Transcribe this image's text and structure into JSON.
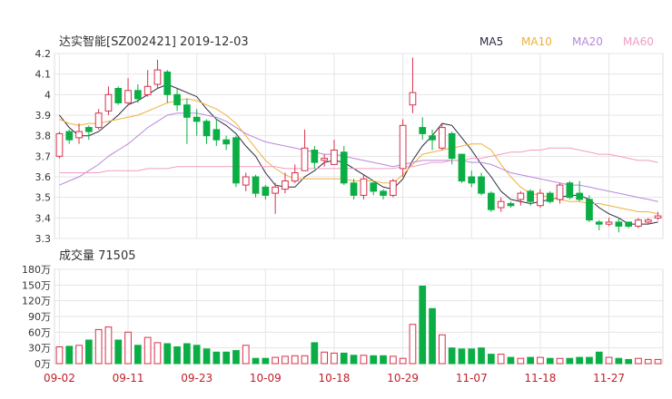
{
  "header": {
    "title": "达实智能[SZ002421] 2019-12-03"
  },
  "legend": [
    {
      "label": "MA5",
      "color": "#2b2b40"
    },
    {
      "label": "MA10",
      "color": "#f0b03c"
    },
    {
      "label": "MA20",
      "color": "#b887dd"
    },
    {
      "label": "MA60",
      "color": "#f29cc3"
    }
  ],
  "volume_header": {
    "label": "成交量 71505"
  },
  "colors": {
    "up": "#d8304a",
    "down": "#0aae45",
    "grid": "#e5e5e5"
  },
  "chart_data": [
    {
      "type": "candlestick",
      "title": "达实智能[SZ002421] 2019-12-03",
      "yticks": [
        "4.2",
        "4.1",
        "4",
        "3.9",
        "3.8",
        "3.7",
        "3.6",
        "3.5",
        "3.4",
        "3.3"
      ],
      "ylim": [
        3.3,
        4.2
      ],
      "xticks": [
        {
          "label": "09-02",
          "index": 0
        },
        {
          "label": "09-11",
          "index": 7
        },
        {
          "label": "09-23",
          "index": 14
        },
        {
          "label": "10-09",
          "index": 21
        },
        {
          "label": "10-18",
          "index": 28
        },
        {
          "label": "10-29",
          "index": 35
        },
        {
          "label": "11-07",
          "index": 42
        },
        {
          "label": "11-18",
          "index": 49
        },
        {
          "label": "11-27",
          "index": 56
        }
      ],
      "candles": [
        [
          3.7,
          3.81,
          3.82,
          3.69
        ],
        [
          3.82,
          3.78,
          3.83,
          3.76
        ],
        [
          3.79,
          3.82,
          3.86,
          3.76
        ],
        [
          3.84,
          3.82,
          3.85,
          3.78
        ],
        [
          3.84,
          3.91,
          3.93,
          3.83
        ],
        [
          3.92,
          4.0,
          4.04,
          3.9
        ],
        [
          4.03,
          3.96,
          4.04,
          3.95
        ],
        [
          3.96,
          4.02,
          4.08,
          3.95
        ],
        [
          4.02,
          3.98,
          4.05,
          3.96
        ],
        [
          4.0,
          4.04,
          4.12,
          3.99
        ],
        [
          4.05,
          4.12,
          4.17,
          4.03
        ],
        [
          4.11,
          4.0,
          4.12,
          3.96
        ],
        [
          4.0,
          3.95,
          4.03,
          3.92
        ],
        [
          3.95,
          3.89,
          3.98,
          3.76
        ],
        [
          3.89,
          3.87,
          3.93,
          3.8
        ],
        [
          3.87,
          3.8,
          3.88,
          3.76
        ],
        [
          3.83,
          3.78,
          3.88,
          3.75
        ],
        [
          3.78,
          3.76,
          3.8,
          3.73
        ],
        [
          3.79,
          3.57,
          3.8,
          3.55
        ],
        [
          3.56,
          3.6,
          3.62,
          3.53
        ],
        [
          3.6,
          3.52,
          3.61,
          3.5
        ],
        [
          3.55,
          3.51,
          3.56,
          3.49
        ],
        [
          3.52,
          3.55,
          3.57,
          3.42
        ],
        [
          3.54,
          3.58,
          3.62,
          3.52
        ],
        [
          3.58,
          3.62,
          3.66,
          3.57
        ],
        [
          3.63,
          3.74,
          3.83,
          3.63
        ],
        [
          3.73,
          3.67,
          3.75,
          3.64
        ],
        [
          3.68,
          3.69,
          3.71,
          3.65
        ],
        [
          3.66,
          3.73,
          3.78,
          3.66
        ],
        [
          3.72,
          3.57,
          3.75,
          3.56
        ],
        [
          3.57,
          3.51,
          3.59,
          3.49
        ],
        [
          3.51,
          3.59,
          3.61,
          3.49
        ],
        [
          3.57,
          3.53,
          3.58,
          3.51
        ],
        [
          3.53,
          3.51,
          3.54,
          3.49
        ],
        [
          3.51,
          3.58,
          3.59,
          3.5
        ],
        [
          3.64,
          3.85,
          3.88,
          3.6
        ],
        [
          3.95,
          4.01,
          4.18,
          3.91
        ],
        [
          3.84,
          3.81,
          3.89,
          3.78
        ],
        [
          3.8,
          3.78,
          3.83,
          3.73
        ],
        [
          3.74,
          3.84,
          3.86,
          3.73
        ],
        [
          3.81,
          3.69,
          3.82,
          3.66
        ],
        [
          3.71,
          3.58,
          3.71,
          3.57
        ],
        [
          3.6,
          3.57,
          3.63,
          3.55
        ],
        [
          3.6,
          3.52,
          3.62,
          3.51
        ],
        [
          3.52,
          3.44,
          3.53,
          3.43
        ],
        [
          3.45,
          3.48,
          3.5,
          3.43
        ],
        [
          3.47,
          3.46,
          3.48,
          3.45
        ],
        [
          3.49,
          3.52,
          3.53,
          3.46
        ],
        [
          3.53,
          3.48,
          3.54,
          3.46
        ],
        [
          3.46,
          3.52,
          3.54,
          3.45
        ],
        [
          3.52,
          3.48,
          3.53,
          3.47
        ],
        [
          3.49,
          3.56,
          3.57,
          3.47
        ],
        [
          3.57,
          3.5,
          3.58,
          3.49
        ],
        [
          3.52,
          3.49,
          3.58,
          3.48
        ],
        [
          3.49,
          3.39,
          3.51,
          3.38
        ],
        [
          3.38,
          3.37,
          3.39,
          3.34
        ],
        [
          3.37,
          3.38,
          3.4,
          3.36
        ],
        [
          3.38,
          3.36,
          3.4,
          3.33
        ],
        [
          3.38,
          3.36,
          3.38,
          3.35
        ],
        [
          3.36,
          3.39,
          3.4,
          3.35
        ],
        [
          3.38,
          3.39,
          3.4,
          3.37
        ],
        [
          3.4,
          3.41,
          3.43,
          3.39
        ]
      ],
      "candles_format": "[open, close, high, low]",
      "ma": {
        "MA5": [
          3.9,
          3.84,
          3.8,
          3.8,
          3.82,
          3.86,
          3.9,
          3.95,
          3.97,
          4.0,
          4.03,
          4.05,
          4.03,
          4.01,
          3.99,
          3.93,
          3.88,
          3.85,
          3.81,
          3.75,
          3.7,
          3.62,
          3.56,
          3.55,
          3.55,
          3.6,
          3.63,
          3.67,
          3.68,
          3.67,
          3.64,
          3.61,
          3.58,
          3.55,
          3.54,
          3.59,
          3.68,
          3.75,
          3.8,
          3.86,
          3.85,
          3.79,
          3.73,
          3.66,
          3.6,
          3.53,
          3.49,
          3.48,
          3.47,
          3.48,
          3.49,
          3.5,
          3.51,
          3.51,
          3.49,
          3.45,
          3.42,
          3.4,
          3.37,
          3.37,
          3.37,
          3.38
        ],
        "MA10": [
          3.88,
          3.86,
          3.85,
          3.86,
          3.86,
          3.87,
          3.88,
          3.89,
          3.9,
          3.92,
          3.94,
          3.96,
          3.97,
          3.98,
          3.97,
          3.95,
          3.93,
          3.9,
          3.86,
          3.8,
          3.74,
          3.68,
          3.64,
          3.61,
          3.59,
          3.59,
          3.59,
          3.59,
          3.59,
          3.59,
          3.58,
          3.58,
          3.58,
          3.57,
          3.57,
          3.61,
          3.66,
          3.71,
          3.72,
          3.73,
          3.74,
          3.75,
          3.76,
          3.76,
          3.73,
          3.66,
          3.6,
          3.55,
          3.52,
          3.51,
          3.5,
          3.49,
          3.48,
          3.48,
          3.47,
          3.47,
          3.46,
          3.45,
          3.44,
          3.43,
          3.43,
          3.42
        ],
        "MA20": [
          3.56,
          3.58,
          3.6,
          3.63,
          3.66,
          3.7,
          3.73,
          3.76,
          3.8,
          3.84,
          3.87,
          3.9,
          3.91,
          3.91,
          3.91,
          3.9,
          3.89,
          3.87,
          3.84,
          3.81,
          3.79,
          3.77,
          3.76,
          3.75,
          3.74,
          3.73,
          3.72,
          3.71,
          3.71,
          3.7,
          3.69,
          3.68,
          3.67,
          3.66,
          3.65,
          3.66,
          3.67,
          3.68,
          3.68,
          3.68,
          3.68,
          3.68,
          3.67,
          3.67,
          3.66,
          3.64,
          3.62,
          3.61,
          3.6,
          3.59,
          3.58,
          3.57,
          3.56,
          3.56,
          3.55,
          3.54,
          3.53,
          3.52,
          3.51,
          3.5,
          3.49,
          3.48
        ],
        "MA60": [
          3.62,
          3.62,
          3.62,
          3.62,
          3.62,
          3.63,
          3.63,
          3.63,
          3.63,
          3.64,
          3.64,
          3.64,
          3.65,
          3.65,
          3.65,
          3.65,
          3.65,
          3.65,
          3.65,
          3.65,
          3.65,
          3.65,
          3.65,
          3.64,
          3.64,
          3.64,
          3.64,
          3.64,
          3.64,
          3.64,
          3.64,
          3.64,
          3.64,
          3.64,
          3.64,
          3.65,
          3.65,
          3.66,
          3.67,
          3.67,
          3.68,
          3.68,
          3.69,
          3.69,
          3.7,
          3.71,
          3.72,
          3.72,
          3.73,
          3.73,
          3.74,
          3.74,
          3.74,
          3.73,
          3.72,
          3.71,
          3.71,
          3.7,
          3.69,
          3.68,
          3.68,
          3.67
        ]
      }
    },
    {
      "type": "bar",
      "title": "成交量 71505",
      "unit": "万",
      "yticks": [
        "180万",
        "150万",
        "120万",
        "90万",
        "60万",
        "30万",
        "0万"
      ],
      "ylim": [
        0,
        180
      ],
      "values": [
        32,
        33,
        35,
        45,
        65,
        70,
        45,
        60,
        35,
        50,
        40,
        38,
        32,
        38,
        35,
        28,
        22,
        22,
        25,
        35,
        10,
        10,
        12,
        14,
        15,
        15,
        40,
        22,
        20,
        20,
        16,
        16,
        15,
        15,
        14,
        10,
        75,
        148,
        105,
        55,
        30,
        28,
        28,
        30,
        18,
        18,
        12,
        10,
        12,
        12,
        10,
        10,
        10,
        12,
        12,
        22,
        12,
        10,
        8,
        10,
        8,
        8
      ]
    }
  ]
}
